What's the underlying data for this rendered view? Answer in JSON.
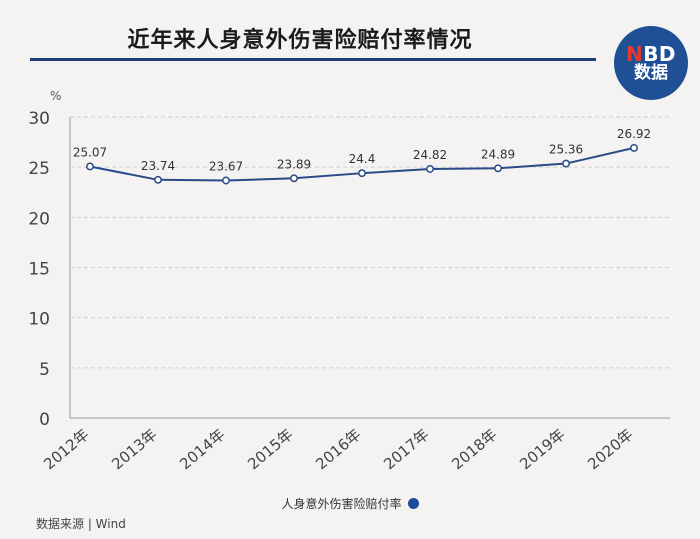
{
  "header": {
    "title": "近年来人身意外伤害险赔付率情况",
    "logo_line1_accent": "N",
    "logo_line1_rest": "BD",
    "logo_line2": "数据",
    "logo_color": "#1f4f95"
  },
  "chart_data": {
    "type": "line",
    "title": "近年来人身意外伤害险赔付率情况",
    "ylabel": "%",
    "xlabel": "",
    "ylim": [
      0,
      30
    ],
    "yticks": [
      0,
      5,
      10,
      15,
      20,
      25,
      30
    ],
    "categories": [
      "2012年",
      "2013年",
      "2014年",
      "2015年",
      "2016年",
      "2017年",
      "2018年",
      "2019年",
      "2020年"
    ],
    "series": [
      {
        "name": "人身意外伤害险赔付率",
        "values": [
          25.07,
          23.74,
          23.67,
          23.89,
          24.4,
          24.82,
          24.89,
          25.36,
          26.92
        ],
        "labels": [
          "25.07",
          "23.74",
          "23.67",
          "23.89",
          "24.4",
          "24.82",
          "24.89",
          "25.36",
          "26.92"
        ],
        "color": "#2a4a8a"
      }
    ],
    "grid": true,
    "legend_position": "bottom-center"
  },
  "footer": {
    "source": "数据来源 | Wind"
  }
}
